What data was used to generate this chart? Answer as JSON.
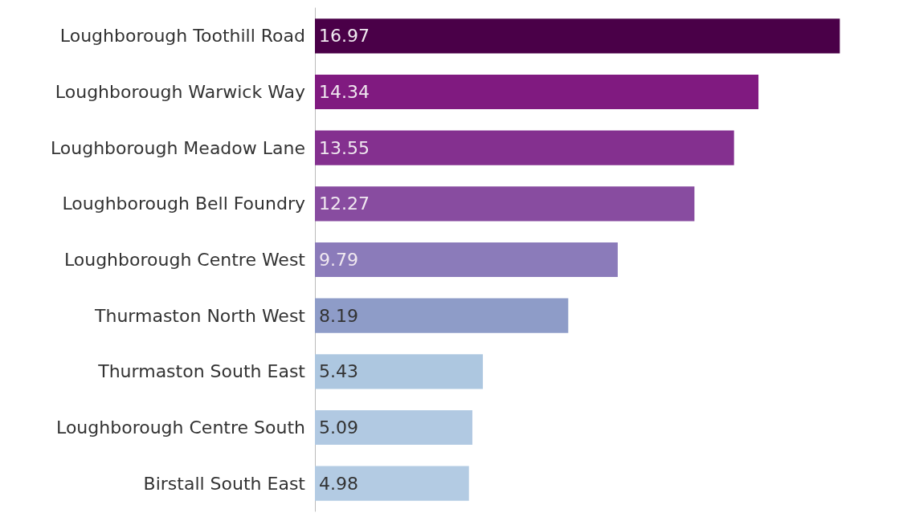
{
  "chart_data": {
    "type": "bar",
    "orientation": "horizontal",
    "data_labels": true,
    "categories": [
      "Loughborough Toothill Road",
      "Loughborough Warwick Way",
      "Loughborough Meadow Lane",
      "Loughborough Bell Foundry",
      "Loughborough Centre West",
      "Thurmaston North West",
      "Thurmaston South East",
      "Loughborough Centre South",
      "Birstall South East"
    ],
    "values": [
      16.97,
      14.34,
      13.55,
      12.27,
      9.79,
      8.19,
      5.43,
      5.09,
      4.98
    ],
    "colors": [
      "#4a0048",
      "#801a80",
      "#84308f",
      "#884ca0",
      "#8b7bba",
      "#8e9cc8",
      "#adc7e0",
      "#b1c9e2",
      "#b3cbe3"
    ]
  }
}
